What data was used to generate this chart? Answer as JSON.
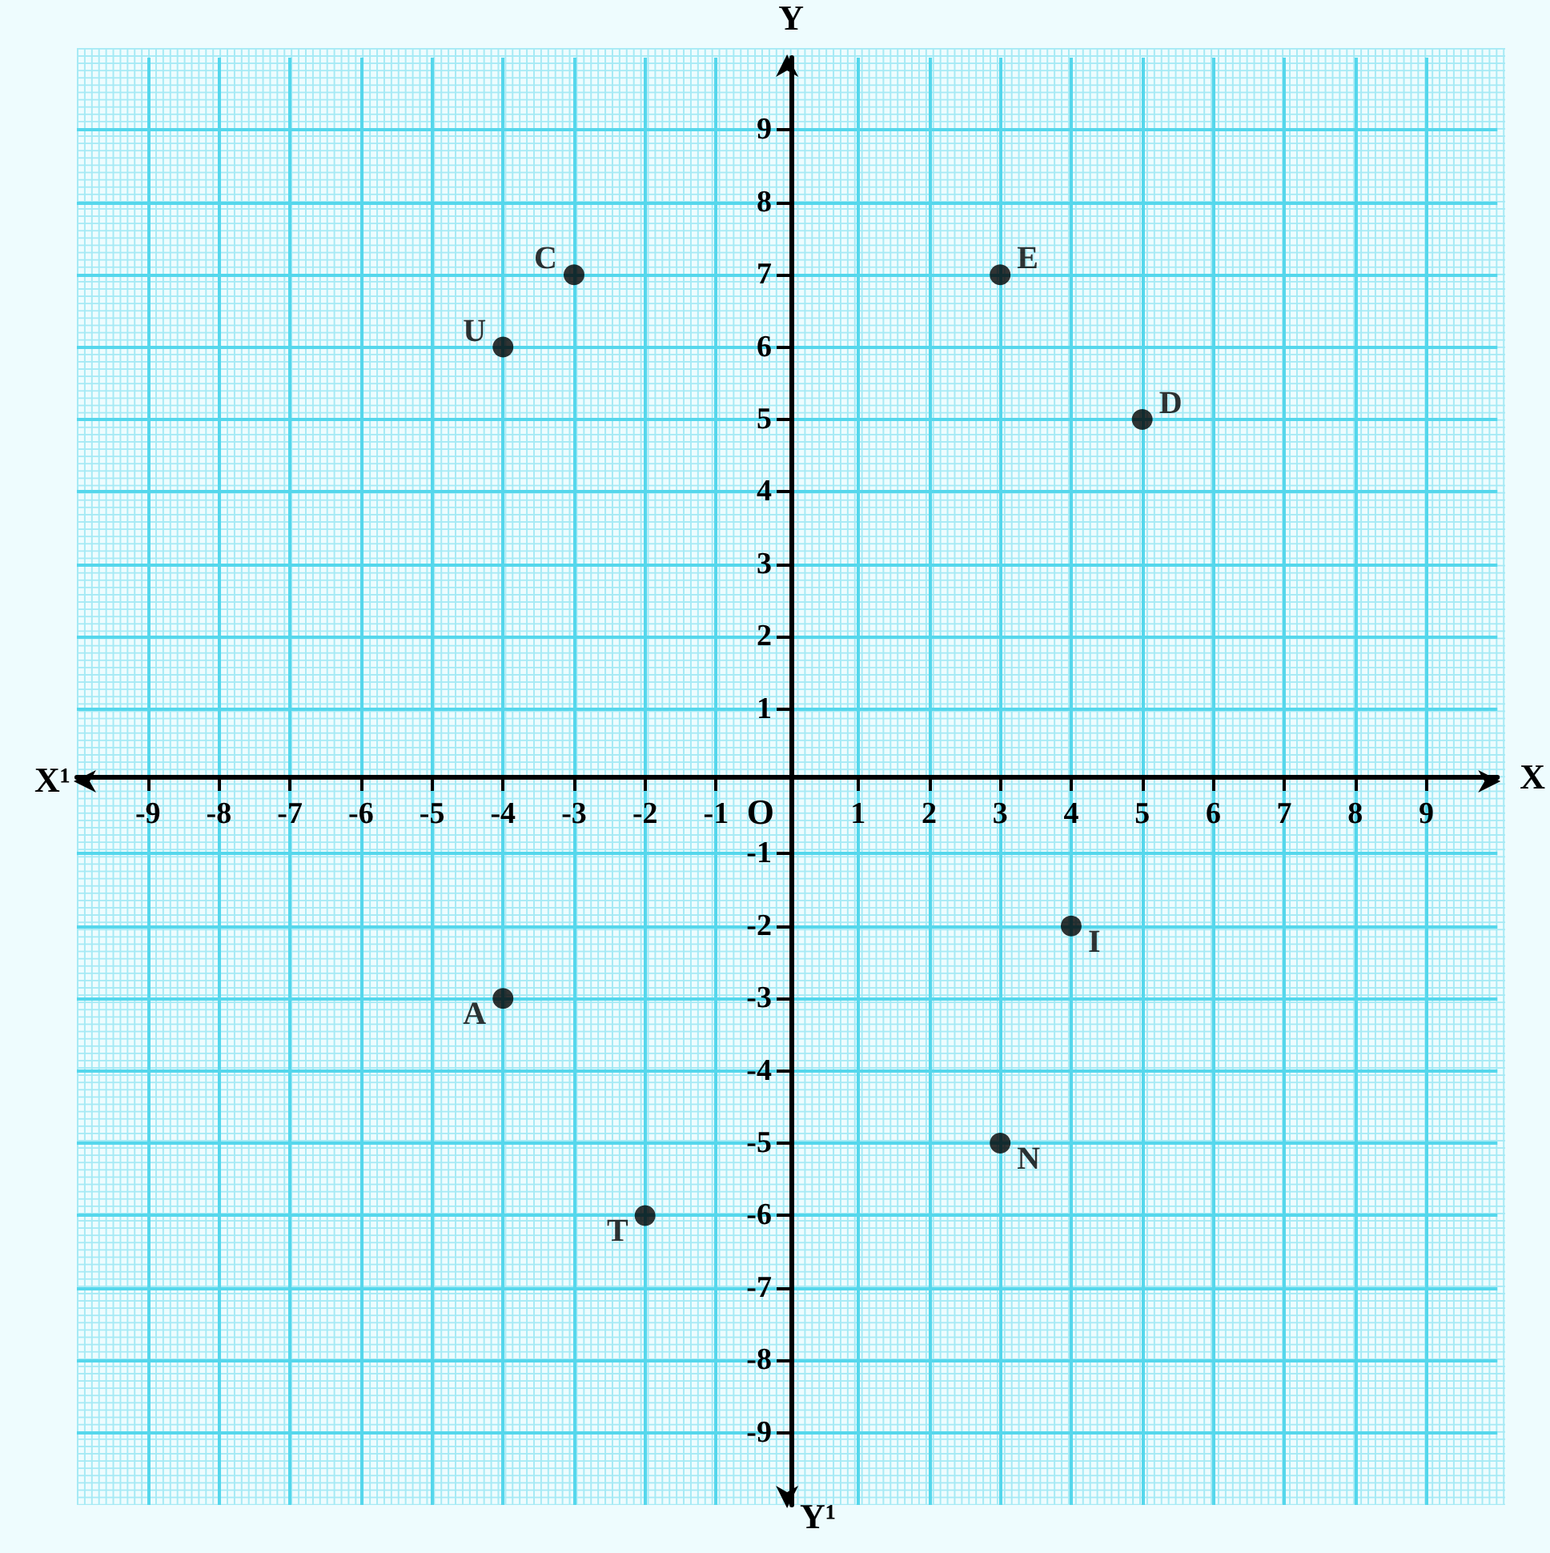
{
  "chart_data": {
    "type": "scatter",
    "xlabel": "X",
    "ylabel": "Y",
    "annotations": [
      "X¹",
      "Y¹",
      "O"
    ],
    "x": [
      -3,
      -4,
      3,
      5,
      4,
      -4,
      3,
      -2
    ],
    "values": [
      7,
      6,
      7,
      5,
      -2,
      -3,
      -5,
      -6
    ],
    "value_labels": [
      "C",
      "U",
      "E",
      "D",
      "I",
      "A",
      "N",
      "T"
    ],
    "color": "#000000",
    "marker": "circle",
    "grid": true,
    "xlim": [
      -10,
      10
    ],
    "ylim": [
      -10,
      10
    ],
    "xticks": [
      -9,
      -8,
      -7,
      -6,
      -5,
      -4,
      -3,
      -2,
      -1,
      1,
      2,
      3,
      4,
      5,
      6,
      7,
      8,
      9
    ],
    "yticks": [
      -9,
      -8,
      -7,
      -6,
      -5,
      -4,
      -3,
      -2,
      -1,
      1,
      2,
      3,
      4,
      5,
      6,
      7,
      8,
      9
    ]
  }
}
